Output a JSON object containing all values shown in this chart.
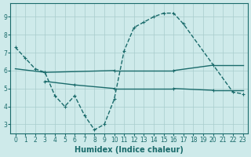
{
  "xlabel": "Humidex (Indice chaleur)",
  "bg_color": "#ceeaea",
  "grid_color": "#a8cccc",
  "line_color": "#1a6b6b",
  "xlim": [
    -0.5,
    23.5
  ],
  "ylim": [
    2.5,
    9.75
  ],
  "yticks": [
    3,
    4,
    5,
    6,
    7,
    8,
    9
  ],
  "xticks": [
    0,
    1,
    2,
    3,
    4,
    5,
    6,
    7,
    8,
    9,
    10,
    11,
    12,
    13,
    14,
    15,
    16,
    17,
    18,
    19,
    20,
    21,
    22,
    23
  ],
  "curve1": {
    "x": [
      0,
      1,
      2,
      3,
      4,
      5,
      6,
      7,
      8,
      9,
      10,
      11,
      12,
      13,
      14,
      15,
      16,
      17,
      22,
      23
    ],
    "y": [
      7.3,
      6.7,
      6.1,
      5.9,
      4.6,
      4.0,
      4.6,
      3.5,
      2.7,
      3.0,
      4.4,
      7.1,
      8.4,
      8.7,
      9.0,
      9.2,
      9.2,
      8.6,
      4.8,
      4.7
    ]
  },
  "curve2_segments": [
    {
      "x": [
        0,
        3
      ],
      "y": [
        6.1,
        5.9
      ]
    },
    {
      "x": [
        3,
        10
      ],
      "y": [
        5.9,
        6.0
      ]
    },
    {
      "x": [
        10,
        16
      ],
      "y": [
        6.0,
        6.0
      ]
    },
    {
      "x": [
        16,
        20
      ],
      "y": [
        6.0,
        6.3
      ]
    },
    {
      "x": [
        20,
        23
      ],
      "y": [
        6.3,
        6.3
      ]
    }
  ],
  "curve3_segments": [
    {
      "x": [
        3,
        6
      ],
      "y": [
        5.4,
        5.2
      ]
    },
    {
      "x": [
        6,
        10
      ],
      "y": [
        5.2,
        5.0
      ]
    },
    {
      "x": [
        10,
        16
      ],
      "y": [
        5.0,
        5.0
      ]
    },
    {
      "x": [
        16,
        20
      ],
      "y": [
        5.0,
        4.9
      ]
    },
    {
      "x": [
        20,
        23
      ],
      "y": [
        4.9,
        4.9
      ]
    }
  ],
  "curve1_markers": {
    "x": [
      0,
      1,
      2,
      3,
      4,
      5,
      6,
      7,
      8,
      9,
      10,
      11,
      12,
      13,
      14,
      15,
      16,
      17,
      22,
      23
    ],
    "y": [
      7.3,
      6.7,
      6.1,
      5.9,
      4.6,
      4.0,
      4.6,
      3.5,
      2.7,
      3.0,
      4.4,
      7.1,
      8.4,
      8.7,
      9.0,
      9.2,
      9.2,
      8.6,
      4.8,
      4.7
    ]
  },
  "curve2_markers": {
    "x": [
      3,
      10,
      16,
      20
    ],
    "y": [
      5.9,
      6.0,
      6.0,
      6.3
    ]
  },
  "curve3_markers": {
    "x": [
      3,
      6,
      10,
      16,
      20
    ],
    "y": [
      5.4,
      5.2,
      5.0,
      5.0,
      4.9
    ]
  }
}
